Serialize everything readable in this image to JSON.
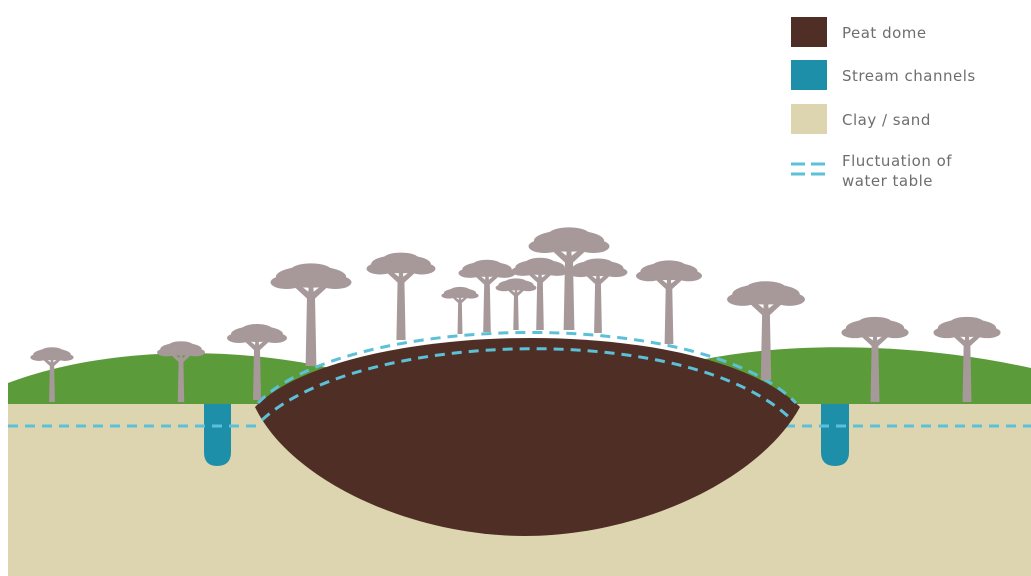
{
  "legend": {
    "items": [
      {
        "label": "Peat dome",
        "swatch_color": "#4e2e25",
        "kind": "swatch"
      },
      {
        "label": "Stream channels",
        "swatch_color": "#1e8fa8",
        "kind": "swatch"
      },
      {
        "label": "Clay / sand",
        "swatch_color": "#ddd5b0",
        "kind": "swatch"
      },
      {
        "label_line1": "Fluctuation of",
        "label_line2": "water table",
        "swatch_color": "#5cc0d8",
        "kind": "dashed-lines"
      }
    ]
  },
  "colors": {
    "peat": "#4e2e25",
    "stream": "#1e8fa8",
    "clay": "#ddd5b0",
    "grass": "#5c9b3a",
    "water_table": "#5cc0d8",
    "tree": "#a7999a"
  },
  "icons": [
    "tree-icon"
  ]
}
